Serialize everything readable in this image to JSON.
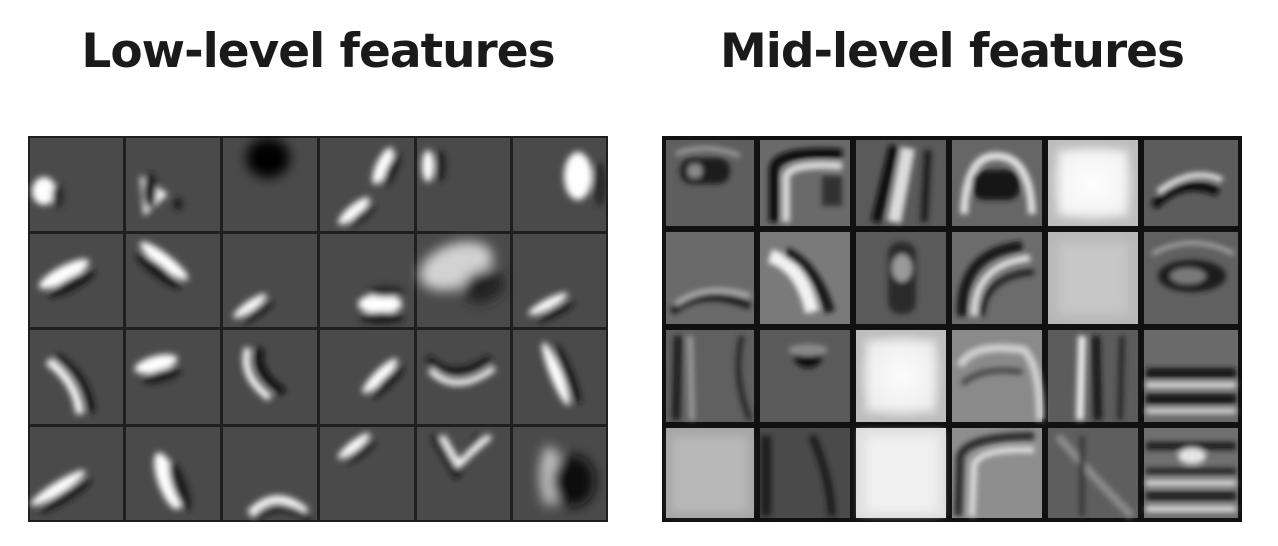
{
  "panels": {
    "left": {
      "title": "Low-level features",
      "cell_fill": "#4a4a4a",
      "grid_color": "#1f1f1f"
    },
    "right": {
      "title": "Mid-level features",
      "cell_fill": "#5a5a5a",
      "grid_color": "#111111"
    }
  }
}
